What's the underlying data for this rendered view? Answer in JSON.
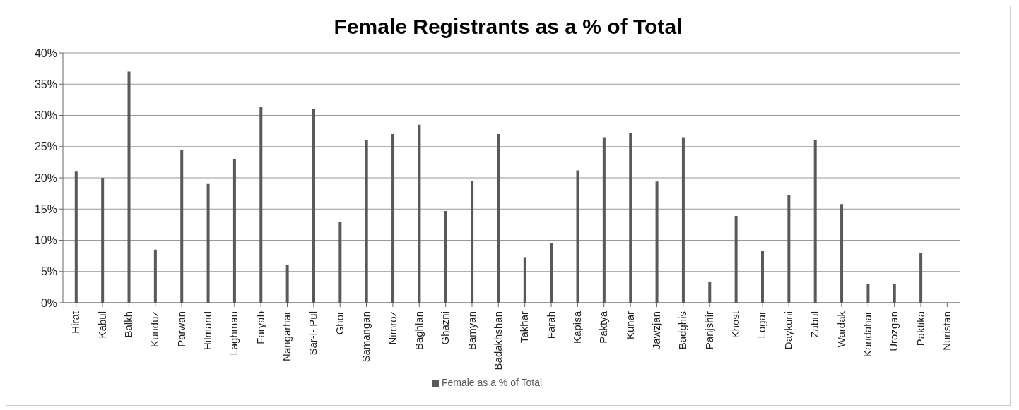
{
  "chart_data": {
    "type": "bar",
    "title": "Female Registrants as a % of Total",
    "categories": [
      "Hirat",
      "Kabul",
      "Balkh",
      "Kunduz",
      "Parwan",
      "Hilmand",
      "Laghman",
      "Faryab",
      "Nangarhar",
      "Sar-i- Pul",
      "Ghor",
      "Samangan",
      "Nimroz",
      "Baghlan",
      "Ghazni",
      "Bamyan",
      "Badakhshan",
      "Takhar",
      "Farah",
      "Kapisa",
      "Paktya",
      "Kunar",
      "Jawzjan",
      "Badghis",
      "Panjshir",
      "Khost",
      "Logar",
      "Daykuni",
      "Zabul",
      "Wardak",
      "Kandahar",
      "Urozgan",
      "Paktika",
      "Nuristan"
    ],
    "series": [
      {
        "name": "Female as a % of Total",
        "color": "#595959",
        "values": [
          21,
          20,
          37,
          8.5,
          24.5,
          19,
          23,
          31.3,
          6,
          31,
          13,
          26,
          27,
          28.5,
          14.7,
          19.5,
          27,
          7.3,
          9.6,
          21.2,
          26.5,
          27.2,
          19.4,
          26.5,
          3.4,
          13.9,
          8.3,
          17.3,
          26,
          15.8,
          3,
          3,
          8,
          0
        ]
      }
    ],
    "ylim": [
      0,
      40
    ],
    "yticks": [
      {
        "value": 0,
        "label": "0%"
      },
      {
        "value": 5,
        "label": "5%"
      },
      {
        "value": 10,
        "label": "10%"
      },
      {
        "value": 15,
        "label": "15%"
      },
      {
        "value": 20,
        "label": "20%"
      },
      {
        "value": 25,
        "label": "25%"
      },
      {
        "value": 30,
        "label": "30%"
      },
      {
        "value": 35,
        "label": "35%"
      },
      {
        "value": 40,
        "label": "40%"
      }
    ],
    "grid": "y",
    "legend": "bottom"
  }
}
